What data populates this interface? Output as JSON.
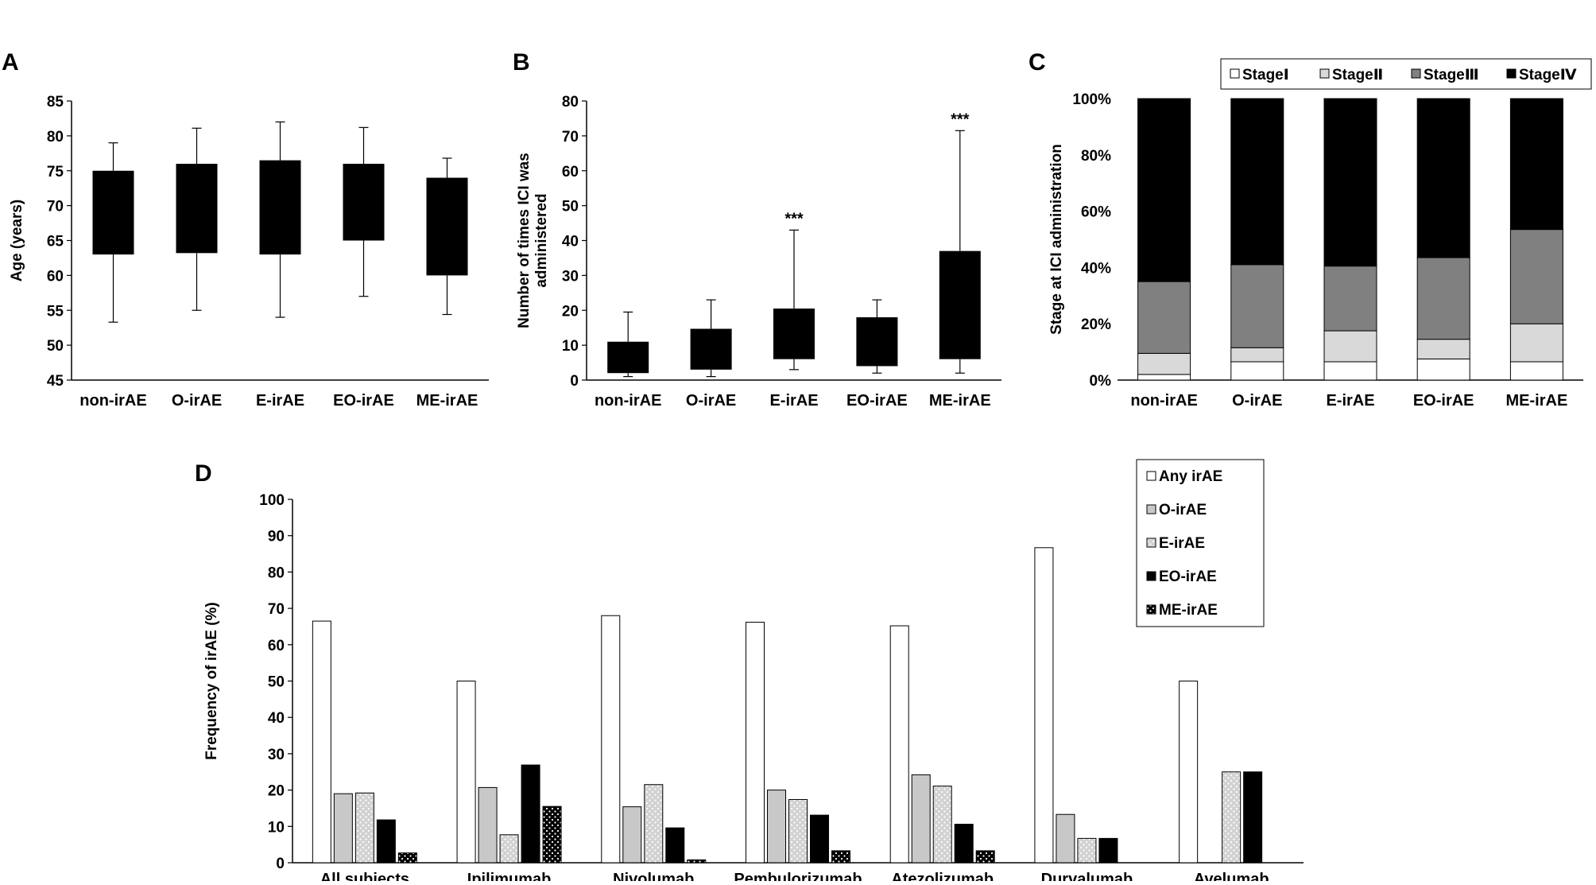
{
  "chart_data": [
    {
      "panel": "A",
      "type": "box",
      "ylabel": "Age (years)",
      "ylim": [
        45,
        85
      ],
      "yticks": [
        45,
        50,
        55,
        60,
        65,
        70,
        75,
        80,
        85
      ],
      "categories": [
        "non-irAE",
        "O-irAE",
        "E-irAE",
        "EO-irAE",
        "ME-irAE"
      ],
      "boxes": [
        {
          "q1": 63,
          "q3": 75,
          "min": 53.3,
          "max": 79
        },
        {
          "q1": 63.2,
          "q3": 76,
          "min": 55,
          "max": 81.1
        },
        {
          "q1": 63,
          "q3": 76.5,
          "min": 54,
          "max": 82
        },
        {
          "q1": 65,
          "q3": 76,
          "min": 57,
          "max": 81.2
        },
        {
          "q1": 60,
          "q3": 74,
          "min": 54.4,
          "max": 76.8
        }
      ]
    },
    {
      "panel": "B",
      "type": "box",
      "ylabel": "Number of times ICI was administered",
      "ylim": [
        0,
        80
      ],
      "yticks": [
        0,
        10,
        20,
        30,
        40,
        50,
        60,
        70,
        80
      ],
      "categories": [
        "non-irAE",
        "O-irAE",
        "E-irAE",
        "EO-irAE",
        "ME-irAE"
      ],
      "boxes": [
        {
          "q1": 2,
          "q3": 11,
          "min": 1,
          "max": 19.5
        },
        {
          "q1": 3,
          "q3": 14.7,
          "min": 1,
          "max": 23
        },
        {
          "q1": 6,
          "q3": 20.5,
          "min": 3,
          "max": 43
        },
        {
          "q1": 4,
          "q3": 18,
          "min": 2,
          "max": 23
        },
        {
          "q1": 6,
          "q3": 37,
          "min": 2,
          "max": 71.5
        }
      ],
      "annotations": [
        "",
        "",
        "***",
        "",
        "***"
      ]
    },
    {
      "panel": "C",
      "type": "bar",
      "stacked": true,
      "ylabel": "Stage at ICI administration",
      "ylim": [
        0,
        100
      ],
      "yticks": [
        "0%",
        "20%",
        "40%",
        "60%",
        "80%",
        "100%"
      ],
      "categories": [
        "non-irAE",
        "O-irAE",
        "E-irAE",
        "EO-irAE",
        "ME-irAE"
      ],
      "series": [
        {
          "name": "StageⅠ",
          "color": "#ffffff",
          "values": [
            2,
            6.5,
            6.5,
            7.5,
            6.5
          ]
        },
        {
          "name": "StageⅡ",
          "color": "#d9d9d9",
          "values": [
            7.5,
            5,
            11,
            7,
            13.5
          ]
        },
        {
          "name": "StageⅢ",
          "color": "#808080",
          "values": [
            25.5,
            29.5,
            23,
            29,
            33.5
          ]
        },
        {
          "name": "StageⅣ",
          "color": "#000000",
          "values": [
            65,
            59,
            59.5,
            56.5,
            46.5
          ]
        }
      ],
      "legend_position": "top-right"
    },
    {
      "panel": "D",
      "type": "bar",
      "ylabel": "Frequency of irAE (%)",
      "ylim": [
        0,
        100
      ],
      "yticks": [
        0,
        10,
        20,
        30,
        40,
        50,
        60,
        70,
        80,
        90,
        100
      ],
      "categories": [
        "All subjects",
        "Ipilimumab",
        "Nivolumab",
        "Pembulorizumab",
        "Atezolizumab",
        "Durvalumab",
        "Avelumab"
      ],
      "series": [
        {
          "name": "Any irAE",
          "color": "#ffffff",
          "values": [
            66.5,
            50,
            68,
            66.2,
            65.2,
            86.7,
            50
          ]
        },
        {
          "name": "O-irAE",
          "color": "#c8c8c8",
          "values": [
            19,
            20.7,
            15.4,
            20,
            24.2,
            13.3,
            0
          ]
        },
        {
          "name": "E-irAE",
          "color": "#d0d0d0",
          "values": [
            19.2,
            7.7,
            21.5,
            17.4,
            21.1,
            6.7,
            25
          ]
        },
        {
          "name": "EO-irAE",
          "color": "#000000",
          "values": [
            11.8,
            26.9,
            9.6,
            13.1,
            10.6,
            6.7,
            25
          ]
        },
        {
          "name": "ME-irAE",
          "color": "#000000",
          "values": [
            2.7,
            15.5,
            0.8,
            3.3,
            3.3,
            0,
            0
          ]
        }
      ],
      "legend_position": "top-right"
    }
  ]
}
